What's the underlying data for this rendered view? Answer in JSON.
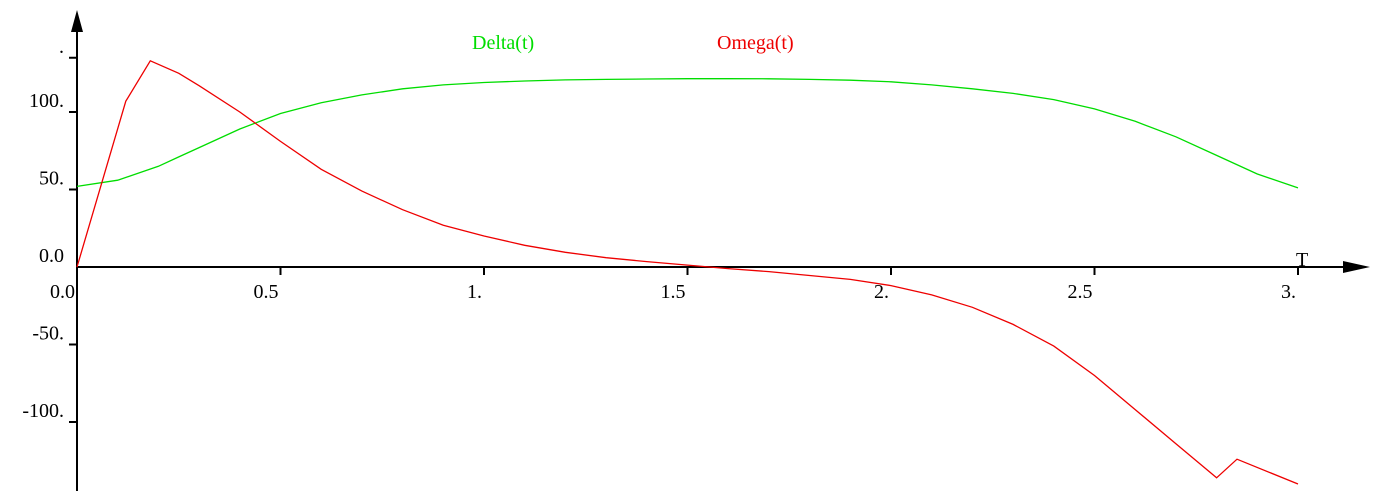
{
  "chart_data": {
    "type": "line",
    "title": "",
    "xlabel": "T",
    "ylabel": "",
    "xlim": [
      0,
      3.1
    ],
    "ylim": [
      -145,
      165
    ],
    "x_ticks": [
      {
        "value": 0.0,
        "label": "0.0"
      },
      {
        "value": 0.5,
        "label": "0.5"
      },
      {
        "value": 1.0,
        "label": "1."
      },
      {
        "value": 1.5,
        "label": "1.5"
      },
      {
        "value": 2.0,
        "label": "2."
      },
      {
        "value": 2.5,
        "label": "2.5"
      },
      {
        "value": 3.0,
        "label": "3."
      }
    ],
    "y_ticks": [
      {
        "value": -100,
        "label": "-100."
      },
      {
        "value": -50,
        "label": "-50."
      },
      {
        "value": 0,
        "label": "0.0"
      },
      {
        "value": 50,
        "label": "50."
      },
      {
        "value": 100,
        "label": "100."
      },
      {
        "value": 135,
        "label": "."
      }
    ],
    "grid": false,
    "legend_position": "top",
    "series": [
      {
        "name": "Delta(t)",
        "color": "#00dd00",
        "x": [
          0.0,
          0.1,
          0.2,
          0.25,
          0.3,
          0.4,
          0.5,
          0.6,
          0.7,
          0.8,
          0.9,
          1.0,
          1.1,
          1.2,
          1.3,
          1.4,
          1.5,
          1.6,
          1.7,
          1.8,
          1.9,
          2.0,
          2.1,
          2.2,
          2.3,
          2.4,
          2.5,
          2.6,
          2.7,
          2.8,
          2.9,
          3.0
        ],
        "y": [
          52,
          56,
          65,
          71,
          77,
          89,
          99,
          106,
          111,
          115,
          117.5,
          119,
          120,
          120.7,
          121,
          121.3,
          121.5,
          121.5,
          121.4,
          121,
          120.5,
          119.5,
          117.5,
          115,
          112,
          108,
          102,
          94,
          84,
          72,
          60,
          51
        ]
      },
      {
        "name": "Omega(t)",
        "color": "#ee0000",
        "x": [
          0.0,
          0.12,
          0.18,
          0.25,
          0.3,
          0.4,
          0.5,
          0.6,
          0.7,
          0.8,
          0.9,
          1.0,
          1.1,
          1.2,
          1.3,
          1.4,
          1.5,
          1.6,
          1.7,
          1.8,
          1.9,
          2.0,
          2.1,
          2.2,
          2.3,
          2.4,
          2.5,
          2.6,
          2.7,
          2.8,
          2.85,
          3.0
        ],
        "y": [
          0,
          107,
          133,
          125,
          117,
          100,
          81,
          63,
          49,
          37,
          27,
          20,
          14,
          9.5,
          6,
          3.5,
          1.2,
          -1,
          -3,
          -5.5,
          -8,
          -12,
          -18,
          -26,
          -37,
          -51,
          -70,
          -92,
          -114,
          -136,
          -124,
          -140
        ]
      }
    ]
  }
}
